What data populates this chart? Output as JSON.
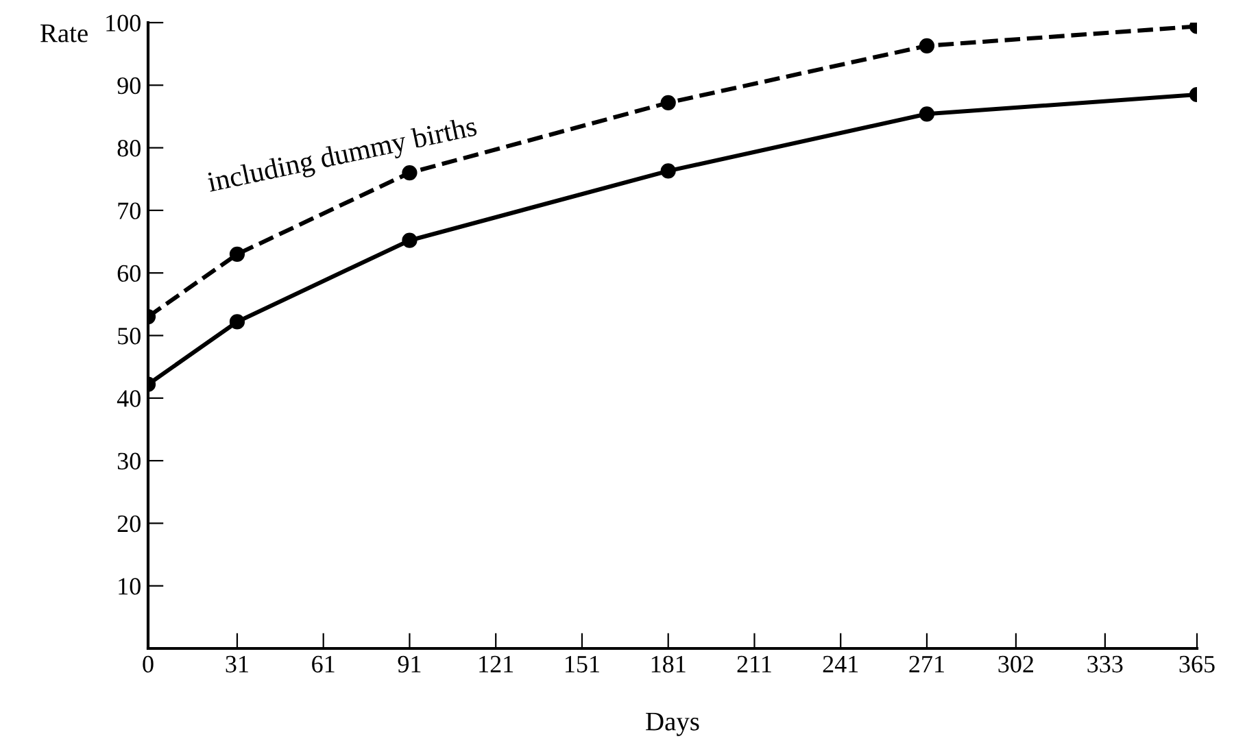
{
  "chart_data": {
    "type": "line",
    "xlabel": "Days",
    "ylabel": "Rate",
    "x": [
      0,
      31,
      91,
      181,
      271,
      365
    ],
    "series": [
      {
        "color": "#000000",
        "line_style": "dashed",
        "values": [
          53,
          63,
          76,
          87.2,
          96.3,
          99.4
        ]
      },
      {
        "color": "#000000",
        "line_style": "solid",
        "values": [
          42.2,
          52.2,
          65.2,
          76.3,
          85.4,
          88.5
        ]
      }
    ],
    "annotations": [
      "including dummy births"
    ],
    "xlim": [
      0,
      365
    ],
    "xticks": [
      0,
      31,
      61,
      91,
      121,
      151,
      181,
      211,
      241,
      271,
      302,
      333,
      365
    ],
    "ylim": [
      0,
      100
    ],
    "yticks": [
      10,
      20,
      30,
      40,
      50,
      60,
      70,
      80,
      90,
      100
    ],
    "marker": "circle",
    "grid": false
  }
}
